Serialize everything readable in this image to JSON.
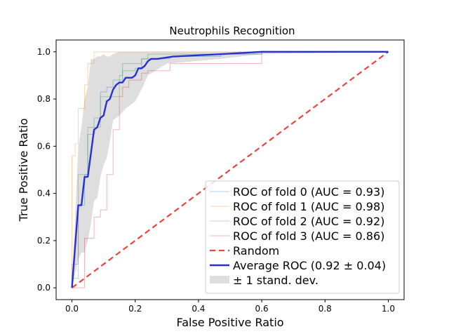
{
  "chart_data": {
    "type": "line",
    "title": "Neutrophils Recognition",
    "xlabel": "False Positive Ratio",
    "ylabel": "True Positive Ratio",
    "xlim": [
      -0.05,
      1.05
    ],
    "ylim": [
      -0.05,
      1.05
    ],
    "xticks": [
      0.0,
      0.2,
      0.4,
      0.6,
      0.8,
      1.0
    ],
    "yticks": [
      0.0,
      0.2,
      0.4,
      0.6,
      0.8,
      1.0
    ],
    "xtick_labels": [
      "0.0",
      "0.2",
      "0.4",
      "0.6",
      "0.8",
      "1.0"
    ],
    "ytick_labels": [
      "0.0",
      "0.2",
      "0.4",
      "0.6",
      "0.8",
      "1.0"
    ],
    "grid": false,
    "legend_position": "lower-right",
    "series": [
      {
        "name": "ROC of fold 0 (AUC = 0.93)",
        "color": "#1f77b4",
        "style": "thin",
        "x": [
          0,
          0,
          0.02,
          0.02,
          0.04,
          0.04,
          0.05,
          0.05,
          0.07,
          0.07,
          0.09,
          0.09,
          0.11,
          0.11,
          0.13,
          0.13,
          0.16,
          0.16,
          0.22,
          0.22,
          0.31,
          0.31,
          0.47,
          0.47,
          0.6,
          0.6,
          1.0
        ],
        "y": [
          0,
          0.1,
          0.1,
          0.35,
          0.35,
          0.48,
          0.48,
          0.65,
          0.65,
          0.72,
          0.72,
          0.83,
          0.83,
          0.85,
          0.85,
          0.88,
          0.88,
          0.95,
          0.95,
          0.97,
          0.97,
          0.98,
          0.98,
          0.99,
          0.99,
          1.0,
          1.0
        ]
      },
      {
        "name": "ROC of fold 1 (AUC = 0.98)",
        "color": "#ff7f0e",
        "style": "thin",
        "x": [
          0,
          0,
          0.01,
          0.01,
          0.02,
          0.02,
          0.04,
          0.04,
          0.05,
          0.05,
          0.07,
          0.07,
          0.24,
          0.24,
          1.0
        ],
        "y": [
          0,
          0.56,
          0.56,
          0.61,
          0.61,
          0.76,
          0.76,
          0.86,
          0.86,
          0.95,
          0.95,
          1.0,
          1.0,
          1.0,
          1.0
        ]
      },
      {
        "name": "ROC of fold 2 (AUC = 0.92)",
        "color": "#2ca02c",
        "style": "thin",
        "x": [
          0,
          0,
          0.02,
          0.02,
          0.05,
          0.05,
          0.09,
          0.09,
          0.11,
          0.11,
          0.15,
          0.15,
          0.16,
          0.16,
          0.2,
          0.2,
          0.22,
          0.22,
          0.24,
          0.24,
          0.6,
          0.6,
          1.0
        ],
        "y": [
          0,
          0.04,
          0.04,
          0.48,
          0.48,
          0.68,
          0.68,
          0.81,
          0.81,
          0.81,
          0.81,
          0.9,
          0.9,
          0.92,
          0.92,
          0.93,
          0.93,
          0.97,
          0.97,
          0.99,
          0.99,
          1.0,
          1.0
        ]
      },
      {
        "name": "ROC of fold 3 (AUC = 0.86)",
        "color": "#d62728",
        "style": "thin",
        "x": [
          0,
          0,
          0.04,
          0.04,
          0.07,
          0.07,
          0.09,
          0.09,
          0.11,
          0.11,
          0.13,
          0.13,
          0.15,
          0.15,
          0.16,
          0.16,
          0.18,
          0.18,
          0.22,
          0.22,
          0.24,
          0.24,
          0.31,
          0.31,
          0.6,
          0.6,
          1.0
        ],
        "y": [
          0,
          0.0,
          0.0,
          0.21,
          0.21,
          0.3,
          0.3,
          0.33,
          0.33,
          0.48,
          0.48,
          0.67,
          0.67,
          0.81,
          0.81,
          0.85,
          0.85,
          0.88,
          0.88,
          0.91,
          0.91,
          0.92,
          0.92,
          0.95,
          0.95,
          1.0,
          1.0
        ]
      },
      {
        "name": "Random",
        "color": "#e8453c",
        "style": "dashed",
        "x": [
          0,
          1
        ],
        "y": [
          0,
          1
        ]
      },
      {
        "name": "Average ROC (0.92 ± 0.04)",
        "color": "#2a2fd4",
        "style": "thick",
        "x": [
          0,
          0.02,
          0.02,
          0.03,
          0.03,
          0.04,
          0.04,
          0.05,
          0.05,
          0.06,
          0.06,
          0.07,
          0.07,
          0.08,
          0.08,
          0.09,
          0.09,
          0.1,
          0.1,
          0.11,
          0.11,
          0.12,
          0.12,
          0.13,
          0.13,
          0.14,
          0.14,
          0.15,
          0.15,
          0.16,
          0.16,
          0.17,
          0.17,
          0.19,
          0.19,
          0.2,
          0.2,
          0.21,
          0.21,
          0.22,
          0.22,
          0.23,
          0.23,
          0.24,
          0.24,
          0.25,
          0.25,
          0.27,
          0.27,
          0.32,
          0.32,
          0.47,
          0.47,
          0.6,
          0.6,
          1.0
        ],
        "y": [
          0,
          0.35,
          0.35,
          0.35,
          0.35,
          0.47,
          0.47,
          0.47,
          0.47,
          0.57,
          0.57,
          0.67,
          0.67,
          0.68,
          0.68,
          0.72,
          0.72,
          0.73,
          0.73,
          0.79,
          0.79,
          0.8,
          0.8,
          0.84,
          0.84,
          0.86,
          0.86,
          0.87,
          0.87,
          0.87,
          0.87,
          0.89,
          0.89,
          0.89,
          0.89,
          0.9,
          0.9,
          0.93,
          0.93,
          0.93,
          0.93,
          0.94,
          0.94,
          0.96,
          0.96,
          0.97,
          0.97,
          0.97,
          0.97,
          0.98,
          0.98,
          0.99,
          0.99,
          1.0,
          1.0,
          1.0
        ]
      }
    ],
    "band": {
      "name": "± 1 stand. dev.",
      "color": "#c8c8c8",
      "x": [
        0,
        0.02,
        0.03,
        0.04,
        0.05,
        0.06,
        0.07,
        0.08,
        0.09,
        0.1,
        0.11,
        0.12,
        0.13,
        0.15,
        0.17,
        0.2,
        0.22,
        0.24,
        0.3,
        0.47,
        0.6,
        1.0
      ],
      "upper": [
        0.0,
        0.6,
        0.68,
        0.8,
        0.85,
        0.97,
        0.97,
        0.98,
        0.98,
        0.99,
        0.98,
        0.98,
        0.99,
        1.0,
        1.0,
        1.0,
        1.0,
        1.0,
        1.0,
        1.0,
        1.0,
        1.0
      ],
      "lower": [
        0.0,
        0.12,
        0.15,
        0.15,
        0.2,
        0.27,
        0.37,
        0.38,
        0.47,
        0.52,
        0.55,
        0.62,
        0.71,
        0.73,
        0.76,
        0.79,
        0.84,
        0.9,
        0.95,
        0.97,
        0.99,
        1.0
      ]
    },
    "legend": [
      {
        "label": "ROC of fold 0 (AUC = 0.93)",
        "color": "#1f77b4",
        "kind": "thin"
      },
      {
        "label": "ROC of fold 1 (AUC = 0.98)",
        "color": "#ff7f0e",
        "kind": "thin"
      },
      {
        "label": "ROC of fold 2 (AUC = 0.92)",
        "color": "#2ca02c",
        "kind": "thin"
      },
      {
        "label": "ROC of fold 3 (AUC = 0.86)",
        "color": "#d62728",
        "kind": "thin"
      },
      {
        "label": "Random",
        "color": "#e8453c",
        "kind": "dashed"
      },
      {
        "label": "Average ROC (0.92 ± 0.04)",
        "color": "#2a2fd4",
        "kind": "thick"
      },
      {
        "label": "± 1 stand. dev.",
        "color": "#c8c8c8",
        "kind": "patch"
      }
    ]
  }
}
